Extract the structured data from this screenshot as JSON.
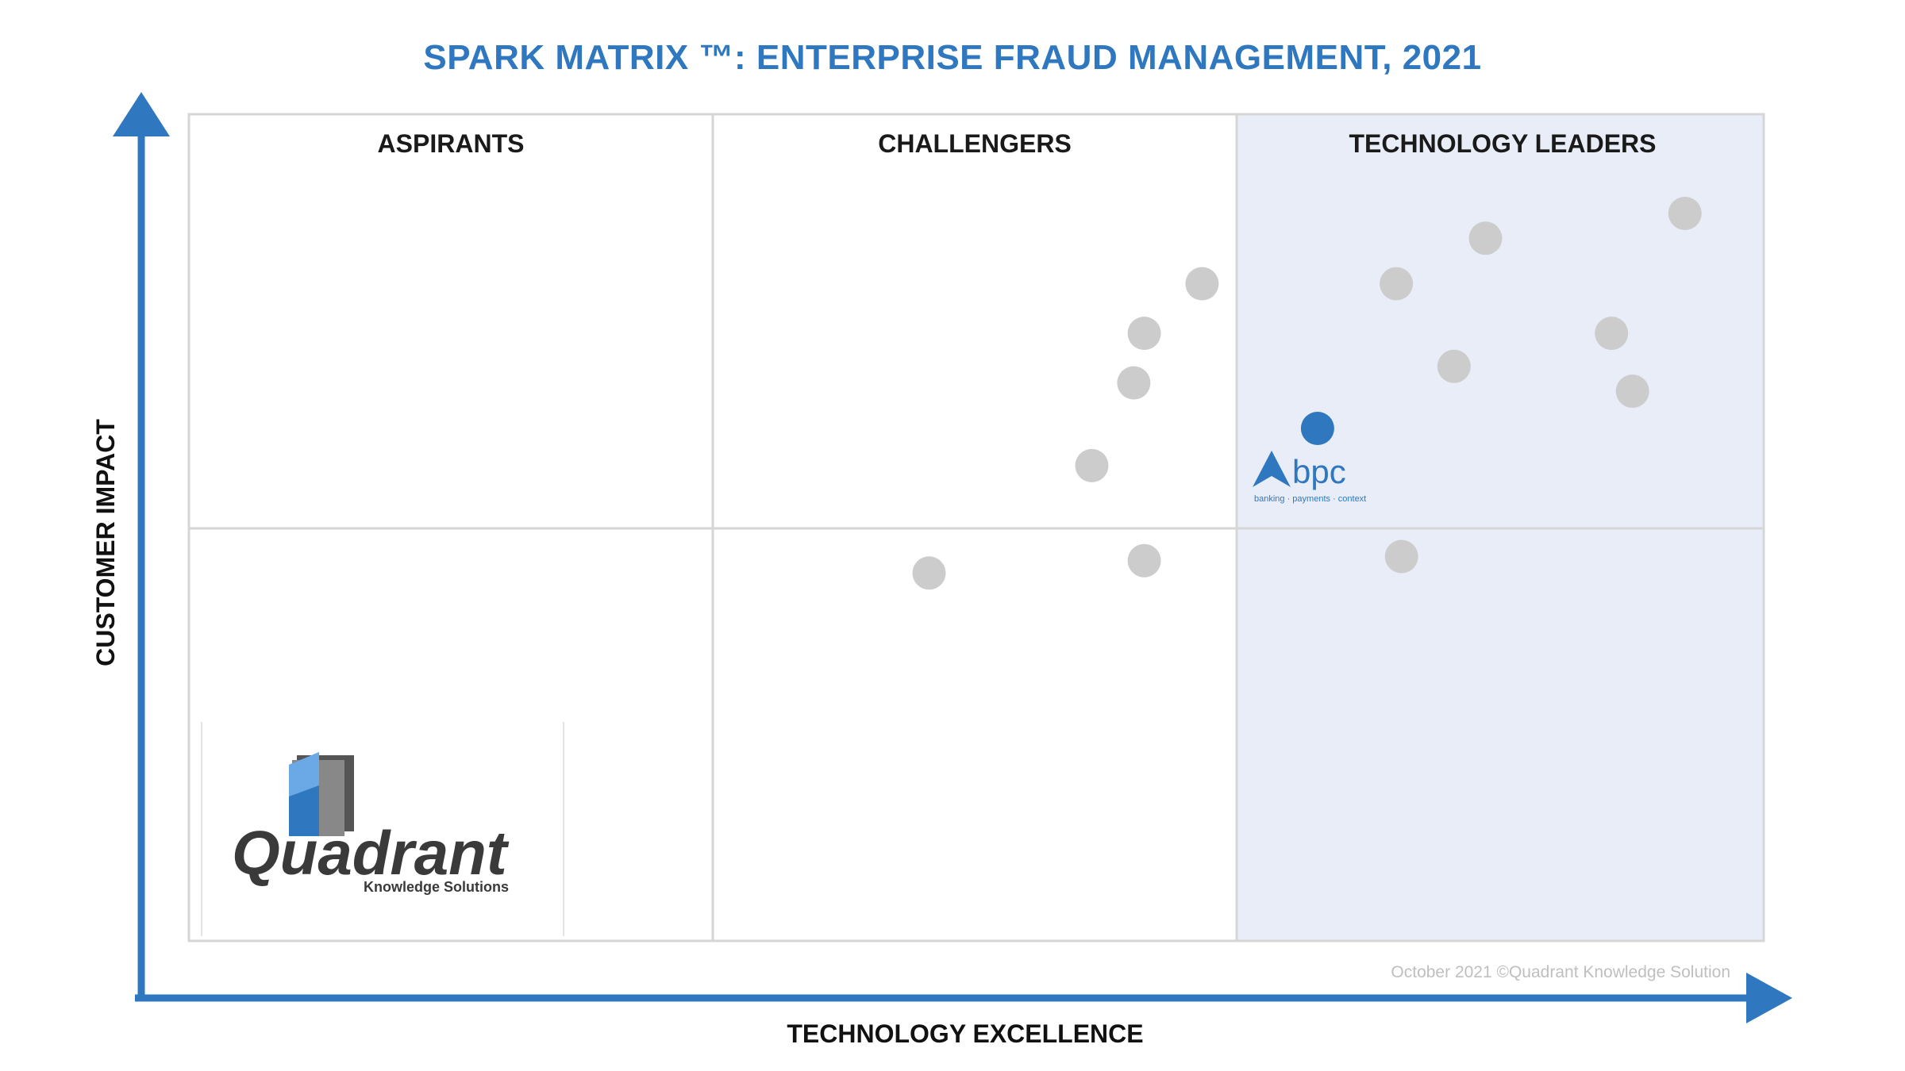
{
  "title": "SPARK MATRIX ™: ENTERPRISE FRAUD MANAGEMENT, 2021",
  "colors": {
    "title": "#2f78c0",
    "axis": "#2f78c0",
    "highlight_point": "#2f78c0",
    "point": "#cccccc",
    "leaders_fill": "#e8edf8",
    "grid": "#d6d6d6"
  },
  "chart_data": {
    "type": "scatter",
    "title": "SPARK MATRIX ™: ENTERPRISE FRAUD MANAGEMENT, 2021",
    "xlabel": "TECHNOLOGY EXCELLENCE",
    "ylabel": "CUSTOMER IMPACT",
    "quadrants": [
      "ASPIRANTS",
      "CHALLENGERS",
      "TECHNOLOGY LEADERS"
    ],
    "x_range": [
      0,
      3
    ],
    "y_range": [
      0,
      2
    ],
    "points": [
      {
        "x": 2.85,
        "y": 1.76,
        "highlight": false
      },
      {
        "x": 2.47,
        "y": 1.7,
        "highlight": false
      },
      {
        "x": 2.3,
        "y": 1.59,
        "highlight": false
      },
      {
        "x": 1.93,
        "y": 1.59,
        "highlight": false
      },
      {
        "x": 1.82,
        "y": 1.47,
        "highlight": false
      },
      {
        "x": 2.71,
        "y": 1.47,
        "highlight": false
      },
      {
        "x": 2.41,
        "y": 1.39,
        "highlight": false
      },
      {
        "x": 1.8,
        "y": 1.35,
        "highlight": false
      },
      {
        "x": 2.75,
        "y": 1.33,
        "highlight": false
      },
      {
        "x": 2.15,
        "y": 1.24,
        "highlight": true,
        "label": "bpc"
      },
      {
        "x": 1.72,
        "y": 1.15,
        "highlight": false
      },
      {
        "x": 1.82,
        "y": 0.92,
        "highlight": false
      },
      {
        "x": 2.31,
        "y": 0.93,
        "highlight": false
      },
      {
        "x": 1.41,
        "y": 0.89,
        "highlight": false
      }
    ]
  },
  "highlight_vendor": {
    "name": "bpc",
    "tagline": "banking · payments · context"
  },
  "logo": {
    "name": "Quadrant",
    "subtitle": "Knowledge Solutions"
  },
  "copyright": "October 2021 ©Quadrant Knowledge Solution"
}
